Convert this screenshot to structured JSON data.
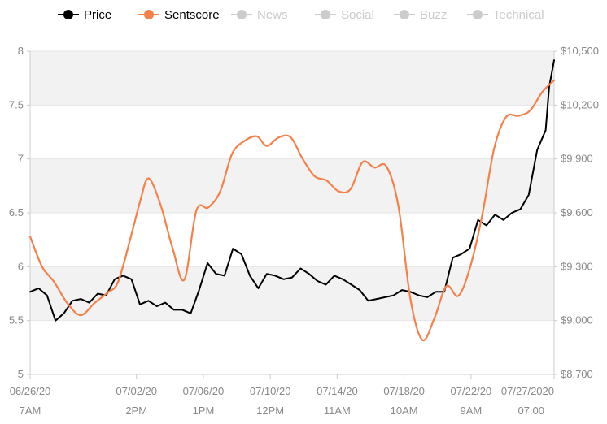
{
  "legend": {
    "items": [
      {
        "label": "Price",
        "color": "#000000",
        "active": true
      },
      {
        "label": "Sentscore",
        "color": "#f4804a",
        "active": true
      },
      {
        "label": "News",
        "color": "#cccccc",
        "active": false
      },
      {
        "label": "Social",
        "color": "#cccccc",
        "active": false
      },
      {
        "label": "Buzz",
        "color": "#cccccc",
        "active": false
      },
      {
        "label": "Technical",
        "color": "#cccccc",
        "active": false
      }
    ]
  },
  "chart_data": {
    "type": "line",
    "title": "",
    "grid": true,
    "left_axis": {
      "ylim": [
        5,
        8
      ],
      "ticks": [
        5,
        5.5,
        6,
        6.5,
        7,
        7.5,
        8
      ],
      "tick_labels": [
        "5",
        "5.5",
        "6",
        "6.5",
        "7",
        "7.5",
        "8"
      ]
    },
    "right_axis": {
      "ylim": [
        8700,
        10500
      ],
      "ticks": [
        8700,
        9000,
        9300,
        9600,
        9900,
        10200,
        10500
      ],
      "tick_labels": [
        "$8,700",
        "$9,000",
        "$9,300",
        "$9,600",
        "$9,900",
        "$10,200",
        "$10,500"
      ]
    },
    "x_axis": {
      "range": [
        "2020-06-26 07:00",
        "2020-07-27 07:00"
      ],
      "tick_labels": [
        {
          "date": "06/26/20",
          "time": "7AM",
          "t": "2020-06-26 07:00"
        },
        {
          "date": "07/02/20",
          "time": "2PM",
          "t": "2020-07-02 14:00"
        },
        {
          "date": "07/06/20",
          "time": "1PM",
          "t": "2020-07-06 13:00"
        },
        {
          "date": "07/10/20",
          "time": "12PM",
          "t": "2020-07-10 12:00"
        },
        {
          "date": "07/14/20",
          "time": "11AM",
          "t": "2020-07-14 11:00"
        },
        {
          "date": "07/18/20",
          "time": "10AM",
          "t": "2020-07-18 10:00"
        },
        {
          "date": "07/22/20",
          "time": "9AM",
          "t": "2020-07-22 09:00"
        },
        {
          "date": "07/27/2020",
          "time": "07:00",
          "t": "2020-07-27 07:00"
        }
      ]
    },
    "series": [
      {
        "name": "Price",
        "axis": "right",
        "color": "#000000",
        "points": [
          [
            "2020-06-26 07:00",
            9160
          ],
          [
            "2020-06-26 19:00",
            9180
          ],
          [
            "2020-06-27 07:00",
            9140
          ],
          [
            "2020-06-27 19:00",
            9000
          ],
          [
            "2020-06-28 07:00",
            9040
          ],
          [
            "2020-06-28 19:00",
            9110
          ],
          [
            "2020-06-29 07:00",
            9120
          ],
          [
            "2020-06-29 19:00",
            9100
          ],
          [
            "2020-06-30 07:00",
            9150
          ],
          [
            "2020-06-30 19:00",
            9140
          ],
          [
            "2020-07-01 07:00",
            9230
          ],
          [
            "2020-07-01 19:00",
            9250
          ],
          [
            "2020-07-02 07:00",
            9230
          ],
          [
            "2020-07-02 19:00",
            9090
          ],
          [
            "2020-07-03 07:00",
            9110
          ],
          [
            "2020-07-03 19:00",
            9080
          ],
          [
            "2020-07-04 07:00",
            9100
          ],
          [
            "2020-07-04 19:00",
            9060
          ],
          [
            "2020-07-05 07:00",
            9060
          ],
          [
            "2020-07-05 19:00",
            9040
          ],
          [
            "2020-07-06 07:00",
            9170
          ],
          [
            "2020-07-06 19:00",
            9320
          ],
          [
            "2020-07-07 07:00",
            9260
          ],
          [
            "2020-07-07 19:00",
            9250
          ],
          [
            "2020-07-08 07:00",
            9400
          ],
          [
            "2020-07-08 19:00",
            9370
          ],
          [
            "2020-07-09 07:00",
            9250
          ],
          [
            "2020-07-09 19:00",
            9180
          ],
          [
            "2020-07-10 07:00",
            9260
          ],
          [
            "2020-07-10 19:00",
            9250
          ],
          [
            "2020-07-11 07:00",
            9230
          ],
          [
            "2020-07-11 19:00",
            9240
          ],
          [
            "2020-07-12 07:00",
            9290
          ],
          [
            "2020-07-12 19:00",
            9260
          ],
          [
            "2020-07-13 07:00",
            9220
          ],
          [
            "2020-07-13 19:00",
            9200
          ],
          [
            "2020-07-14 07:00",
            9250
          ],
          [
            "2020-07-14 19:00",
            9230
          ],
          [
            "2020-07-15 07:00",
            9200
          ],
          [
            "2020-07-15 19:00",
            9170
          ],
          [
            "2020-07-16 07:00",
            9110
          ],
          [
            "2020-07-16 19:00",
            9120
          ],
          [
            "2020-07-17 07:00",
            9130
          ],
          [
            "2020-07-17 19:00",
            9140
          ],
          [
            "2020-07-18 07:00",
            9170
          ],
          [
            "2020-07-18 19:00",
            9160
          ],
          [
            "2020-07-19 07:00",
            9140
          ],
          [
            "2020-07-19 19:00",
            9130
          ],
          [
            "2020-07-20 07:00",
            9160
          ],
          [
            "2020-07-20 19:00",
            9160
          ],
          [
            "2020-07-21 07:00",
            9350
          ],
          [
            "2020-07-21 19:00",
            9370
          ],
          [
            "2020-07-22 07:00",
            9400
          ],
          [
            "2020-07-22 19:00",
            9560
          ],
          [
            "2020-07-23 07:00",
            9530
          ],
          [
            "2020-07-23 19:00",
            9590
          ],
          [
            "2020-07-24 07:00",
            9560
          ],
          [
            "2020-07-24 19:00",
            9600
          ],
          [
            "2020-07-25 07:00",
            9620
          ],
          [
            "2020-07-25 19:00",
            9700
          ],
          [
            "2020-07-26 07:00",
            9950
          ],
          [
            "2020-07-26 19:00",
            10060
          ],
          [
            "2020-07-27 00:00",
            10300
          ],
          [
            "2020-07-27 07:00",
            10450
          ]
        ]
      },
      {
        "name": "Sentscore",
        "axis": "left",
        "color": "#f4804a",
        "points": [
          [
            "2020-06-26 07:00",
            6.28
          ],
          [
            "2020-06-27 00:00",
            6.0
          ],
          [
            "2020-06-27 17:00",
            5.86
          ],
          [
            "2020-06-28 12:00",
            5.66
          ],
          [
            "2020-06-29 07:00",
            5.55
          ],
          [
            "2020-06-30 02:00",
            5.66
          ],
          [
            "2020-06-30 21:00",
            5.76
          ],
          [
            "2020-07-01 12:00",
            5.86
          ],
          [
            "2020-07-02 07:00",
            6.3
          ],
          [
            "2020-07-02 19:00",
            6.6
          ],
          [
            "2020-07-03 07:00",
            6.82
          ],
          [
            "2020-07-04 00:00",
            6.58
          ],
          [
            "2020-07-04 17:00",
            6.18
          ],
          [
            "2020-07-05 10:00",
            5.88
          ],
          [
            "2020-07-06 03:00",
            6.52
          ],
          [
            "2020-07-06 20:00",
            6.55
          ],
          [
            "2020-07-07 13:00",
            6.7
          ],
          [
            "2020-07-08 06:00",
            7.05
          ],
          [
            "2020-07-09 00:00",
            7.17
          ],
          [
            "2020-07-09 17:00",
            7.21
          ],
          [
            "2020-07-10 07:00",
            7.12
          ],
          [
            "2020-07-11 00:00",
            7.2
          ],
          [
            "2020-07-11 17:00",
            7.2
          ],
          [
            "2020-07-12 10:00",
            7.0
          ],
          [
            "2020-07-13 03:00",
            6.84
          ],
          [
            "2020-07-13 20:00",
            6.8
          ],
          [
            "2020-07-14 13:00",
            6.7
          ],
          [
            "2020-07-15 06:00",
            6.72
          ],
          [
            "2020-07-15 23:00",
            6.97
          ],
          [
            "2020-07-16 16:00",
            6.92
          ],
          [
            "2020-07-17 09:00",
            6.93
          ],
          [
            "2020-07-18 02:00",
            6.56
          ],
          [
            "2020-07-18 19:00",
            5.7
          ],
          [
            "2020-07-19 12:00",
            5.32
          ],
          [
            "2020-07-20 05:00",
            5.52
          ],
          [
            "2020-07-20 22:00",
            5.82
          ],
          [
            "2020-07-21 15:00",
            5.73
          ],
          [
            "2020-07-22 08:00",
            6.0
          ],
          [
            "2020-07-23 01:00",
            6.48
          ],
          [
            "2020-07-23 18:00",
            7.1
          ],
          [
            "2020-07-24 11:00",
            7.39
          ],
          [
            "2020-07-25 04:00",
            7.4
          ],
          [
            "2020-07-25 21:00",
            7.45
          ],
          [
            "2020-07-26 14:00",
            7.62
          ],
          [
            "2020-07-27 07:00",
            7.73
          ]
        ]
      }
    ]
  }
}
